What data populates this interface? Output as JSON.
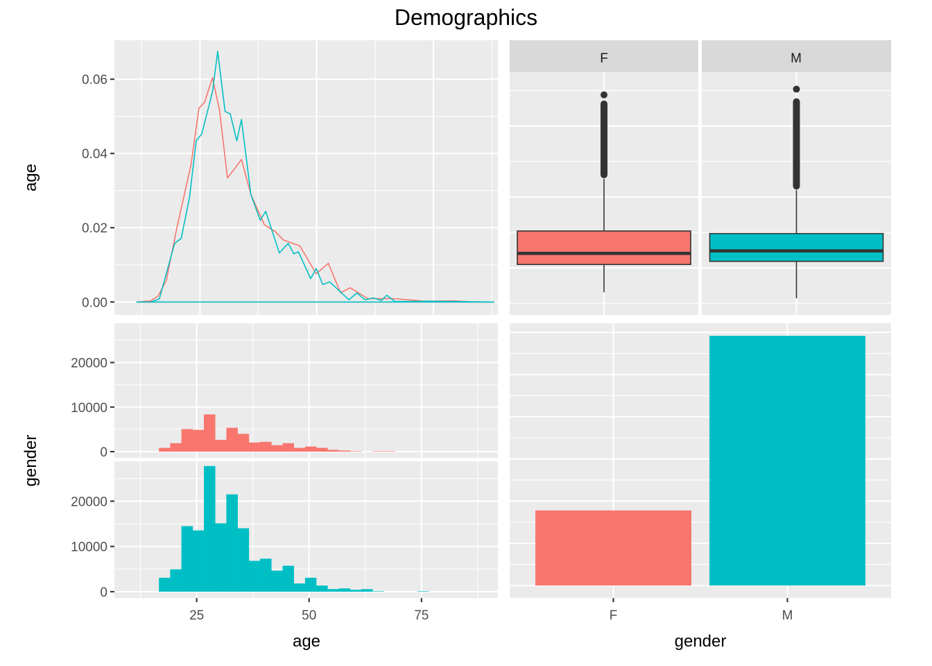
{
  "title": "Demographics",
  "colors": {
    "F": "#F8766D",
    "M": "#00BFC4",
    "panel": "#EBEBEB",
    "strip": "#D9D9D9",
    "outline": "#333333"
  },
  "chart_data": [
    {
      "id": "age-density",
      "type": "line",
      "title": "",
      "xlabel": "",
      "ylabel": "age",
      "xlim": [
        6.7,
        88.8
      ],
      "ylim": [
        -0.0035,
        0.0705
      ],
      "x_major_ticks": [
        25,
        50,
        75
      ],
      "y_ticks": [
        0,
        0.02,
        0.04,
        0.06
      ],
      "y_tick_labels": [
        "0.00",
        "0.02",
        "0.04",
        "0.06"
      ],
      "grid": true,
      "series": [
        {
          "name": "F",
          "x": [
            11.4,
            14.5,
            16.0,
            17.8,
            20.1,
            23.1,
            24.8,
            26.0,
            27.7,
            29.2,
            30.9,
            32.5,
            33.9,
            35.9,
            38.8,
            41.1,
            42.9,
            46.4,
            49.9,
            52.5,
            55.1,
            57.2,
            61.0,
            66.8,
            73.2,
            79.7,
            83.2,
            88.0
          ],
          "y": [
            0,
            0.0003,
            0.0015,
            0.0057,
            0.0202,
            0.037,
            0.0522,
            0.0538,
            0.0604,
            0.0516,
            0.0334,
            0.036,
            0.0384,
            0.029,
            0.0208,
            0.019,
            0.0167,
            0.0151,
            0.0076,
            0.0104,
            0.0025,
            0.0038,
            0.0009,
            0.0009,
            0.0002,
            0.0003,
            0,
            0
          ]
        },
        {
          "name": "M",
          "x": [
            11.4,
            14.5,
            16.3,
            19.6,
            21.0,
            22.8,
            24.2,
            25.4,
            27.7,
            28.8,
            30.4,
            31.5,
            32.9,
            33.9,
            35.9,
            37.9,
            39.1,
            42.0,
            43.9,
            45.1,
            46.1,
            48.7,
            49.9,
            51.3,
            52.8,
            56.9,
            58.6,
            60.4,
            62.1,
            63.9,
            65.0,
            66.8,
            74.4,
            88.0
          ],
          "y": [
            0,
            0,
            0.0008,
            0.0158,
            0.0171,
            0.0283,
            0.0434,
            0.0453,
            0.0566,
            0.0675,
            0.0513,
            0.0507,
            0.0434,
            0.0492,
            0.029,
            0.022,
            0.0244,
            0.0132,
            0.0158,
            0.013,
            0.0135,
            0.0063,
            0.009,
            0.0047,
            0.0054,
            0.0006,
            0.0024,
            0.0006,
            0.0011,
            0.0004,
            0.0018,
            0.0001,
            0.0002,
            0
          ]
        }
      ]
    },
    {
      "id": "age-boxplot",
      "type": "box",
      "facets": [
        "F",
        "M"
      ],
      "ylim": [
        8.4,
        94.0
      ],
      "y_major_ticks": [
        25,
        50,
        75
      ],
      "series": [
        {
          "name": "F",
          "lower_whisker": 16.4,
          "q1": 26.2,
          "median": 30.1,
          "q3": 38.0,
          "upper_whisker": 56.4,
          "outlier_range": [
            56.6,
            84.0
          ],
          "max_outlier": 86.0
        },
        {
          "name": "M",
          "lower_whisker": 14.3,
          "q1": 27.3,
          "median": 31.0,
          "q3": 37.1,
          "upper_whisker": 52.4,
          "outlier_range": [
            52.6,
            84.8
          ],
          "max_outlier": 88.0
        }
      ]
    },
    {
      "id": "age-histogram-by-gender",
      "type": "bar",
      "xlabel": "age",
      "ylabel": "gender",
      "xlim": [
        6.7,
        92.0
      ],
      "x_ticks": [
        25,
        50,
        75
      ],
      "x_tick_labels": [
        "25",
        "50",
        "75"
      ],
      "y_ticks": [
        0,
        10000,
        20000
      ],
      "y_tick_labels": [
        "0",
        "10000",
        "20000"
      ],
      "ylim": [
        -1400,
        28800
      ],
      "binwidth": 2.5,
      "bin_start": 16.6,
      "series": [
        {
          "name": "F",
          "values": [
            850,
            1900,
            5050,
            4900,
            8350,
            2650,
            5350,
            4000,
            2050,
            2200,
            1450,
            1900,
            850,
            1150,
            850,
            400,
            250,
            100,
            0,
            100,
            100,
            0,
            0,
            0
          ]
        },
        {
          "name": "M",
          "values": [
            3070,
            4950,
            14480,
            13540,
            27760,
            15100,
            21510,
            14010,
            6820,
            7290,
            4640,
            5730,
            1820,
            3070,
            1350,
            570,
            730,
            420,
            570,
            100,
            0,
            0,
            0,
            100
          ]
        }
      ]
    },
    {
      "id": "gender-count",
      "type": "bar",
      "xlabel": "gender",
      "categories": [
        "F",
        "M"
      ],
      "values": [
        44500,
        148000
      ],
      "ylim": [
        -7400,
        155400
      ]
    }
  ],
  "labels": {
    "x_left": "age",
    "x_right": "gender",
    "y_top": "age",
    "y_bottom": "gender",
    "strip_F": "F",
    "strip_M": "M",
    "bar_tick_F": "F",
    "bar_tick_M": "M"
  }
}
